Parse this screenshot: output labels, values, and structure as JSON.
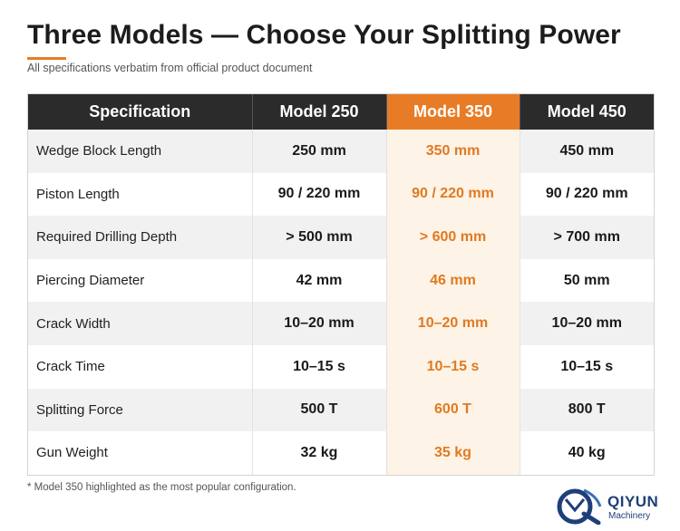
{
  "header": {
    "title": "Three Models — Choose Your Splitting Power",
    "subtitle": "All specifications verbatim from official product document"
  },
  "table": {
    "columns": [
      "Specification",
      "Model 250",
      "Model 350",
      "Model 450"
    ],
    "highlight_column": "Model 350",
    "rows": [
      {
        "spec": "Wedge Block Length",
        "m250": "250 mm",
        "m350": "350 mm",
        "m450": "450 mm"
      },
      {
        "spec": "Piston Length",
        "m250": "90 / 220 mm",
        "m350": "90 / 220 mm",
        "m450": "90 / 220 mm"
      },
      {
        "spec": "Required Drilling Depth",
        "m250": "> 500 mm",
        "m350": "> 600 mm",
        "m450": "> 700 mm"
      },
      {
        "spec": "Piercing Diameter",
        "m250": "42 mm",
        "m350": "46 mm",
        "m450": "50 mm"
      },
      {
        "spec": "Crack Width",
        "m250": "10–20 mm",
        "m350": "10–20 mm",
        "m450": "10–20 mm"
      },
      {
        "spec": "Crack Time",
        "m250": "10–15 s",
        "m350": "10–15 s",
        "m450": "10–15 s"
      },
      {
        "spec": "Splitting Force",
        "m250": "500 T",
        "m350": "600 T",
        "m450": "800 T"
      },
      {
        "spec": "Gun Weight",
        "m250": "32 kg",
        "m350": "35 kg",
        "m450": "40 kg"
      }
    ]
  },
  "footnote": "* Model 350 highlighted as the most popular configuration.",
  "logo": {
    "name": "QIYUN",
    "sub": "Machinery",
    "icon": "qiyun-logo-icon"
  },
  "colors": {
    "accent": "#e87c26",
    "header_bg": "#2b2b2b",
    "highlight_text": "#e07a22",
    "highlight_bg": "#fdf3e6",
    "brand_blue": "#1f3f7a"
  }
}
